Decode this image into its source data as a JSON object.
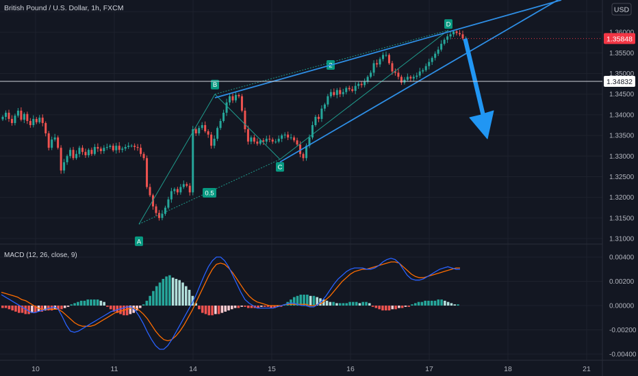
{
  "header": {
    "title": "British Pound / U.S. Dollar, 1h, FXCM",
    "currency_button": "USD"
  },
  "price_axis": {
    "ticks": [
      "1.31000",
      "1.31500",
      "1.32000",
      "1.32500",
      "1.33000",
      "1.33500",
      "1.34000",
      "1.34500",
      "1.35000",
      "1.35500",
      "1.36000",
      "1.36500"
    ],
    "tick_values": [
      1.31,
      1.315,
      1.32,
      1.325,
      1.33,
      1.335,
      1.34,
      1.345,
      1.35,
      1.355,
      1.36,
      1.365
    ],
    "last_price_label": "1.35848",
    "last_price": 1.35848,
    "last_price_color": "#f23645",
    "hline_label": "1.34832",
    "hline_price": 1.34832
  },
  "macd_panel": {
    "legend": "MACD (12, 26, close, 9)",
    "ticks": [
      "0.00400",
      "0.00200",
      "0.00000",
      "-0.00200",
      "-0.00400"
    ],
    "tick_values": [
      0.004,
      0.002,
      0,
      -0.002,
      -0.004
    ]
  },
  "time_axis": {
    "labels": [
      "10",
      "11",
      "14",
      "15",
      "16",
      "17",
      "18",
      "21"
    ]
  },
  "pattern": {
    "point_labels": [
      "A",
      "B",
      "C",
      "D"
    ],
    "ratio_labels": [
      "0.5",
      "2"
    ]
  },
  "colors": {
    "up": "#26a69a",
    "down": "#ef5350",
    "background": "#131722",
    "drawing_blue": "#2e8fe6",
    "macd_line": "#2962ff",
    "signal_line": "#ff6d00",
    "pattern_label_bg": "#089981"
  },
  "chart_data": [
    {
      "type": "candlestick",
      "title": "British Pound / U.S. Dollar, 1h, FXCM",
      "x_labels": [
        "10",
        "11",
        "14",
        "15",
        "16",
        "17",
        "18",
        "21"
      ],
      "ylim": [
        1.308,
        1.368
      ],
      "pattern_points": [
        {
          "label": "A",
          "price": 1.3135
        },
        {
          "label": "B",
          "price": 1.345
        },
        {
          "label": "C",
          "price": 1.3292
        },
        {
          "label": "D",
          "price": 1.3605
        }
      ],
      "closes": [
        1.3395,
        1.3405,
        1.339,
        1.338,
        1.3398,
        1.341,
        1.3388,
        1.3402,
        1.3385,
        1.3375,
        1.339,
        1.3382,
        1.3393,
        1.338,
        1.3355,
        1.332,
        1.334,
        1.3345,
        1.332,
        1.3265,
        1.3285,
        1.33,
        1.3315,
        1.3295,
        1.3305,
        1.332,
        1.331,
        1.3302,
        1.3315,
        1.3305,
        1.3322,
        1.3318,
        1.3312,
        1.332,
        1.3322,
        1.3325,
        1.3314,
        1.3325,
        1.3315,
        1.3318,
        1.3322,
        1.3325,
        1.3325,
        1.3322,
        1.332,
        1.3305,
        1.3295,
        1.3225,
        1.3205,
        1.3178,
        1.3162,
        1.315,
        1.316,
        1.3175,
        1.3195,
        1.3215,
        1.322,
        1.3212,
        1.3225,
        1.3232,
        1.3228,
        1.3212,
        1.3365,
        1.3355,
        1.3368,
        1.3375,
        1.336,
        1.3352,
        1.3325,
        1.3342,
        1.3368,
        1.3385,
        1.3405,
        1.343,
        1.3445,
        1.3435,
        1.3448,
        1.3445,
        1.341,
        1.3365,
        1.3335,
        1.3345,
        1.3335,
        1.333,
        1.3338,
        1.3335,
        1.3342,
        1.334,
        1.3335,
        1.3335,
        1.3342,
        1.335,
        1.3352,
        1.3345,
        1.3345,
        1.3338,
        1.3328,
        1.3305,
        1.3295,
        1.3325,
        1.3345,
        1.3375,
        1.3395,
        1.339,
        1.3415,
        1.3425,
        1.3445,
        1.3455,
        1.3448,
        1.346,
        1.345,
        1.3455,
        1.3465,
        1.3462,
        1.3458,
        1.347,
        1.3475,
        1.3472,
        1.348,
        1.3492,
        1.3502,
        1.3525,
        1.3522,
        1.3535,
        1.3545,
        1.3545,
        1.3525,
        1.3505,
        1.3502,
        1.3492,
        1.3478,
        1.3485,
        1.3492,
        1.3488,
        1.3492,
        1.3495,
        1.3505,
        1.3508,
        1.3518,
        1.3528,
        1.3538,
        1.3548,
        1.3558,
        1.3572,
        1.3582,
        1.359,
        1.3595,
        1.3602,
        1.3598,
        1.3595,
        1.3585,
        1.3585
      ],
      "last_price": 1.35848,
      "horizontal_line": 1.34832
    },
    {
      "type": "bar",
      "title": "MACD (12, 26, close, 9)",
      "ylim": [
        -0.0045,
        0.0048
      ],
      "histogram": [
        -0.0002,
        -0.0002,
        -0.0003,
        -0.0004,
        -0.0005,
        -0.0006,
        -0.0006,
        -0.0007,
        -0.0007,
        -0.0006,
        -0.0006,
        -0.0005,
        -0.0005,
        -0.0004,
        -0.0004,
        -0.0004,
        -0.0003,
        -0.0003,
        -0.0003,
        -0.0002,
        -0.0001,
        0.0001,
        0.0002,
        0.0003,
        0.0004,
        0.0004,
        0.0005,
        0.0005,
        0.0005,
        0.0005,
        0.0004,
        0.0003,
        -0.0001,
        -0.0003,
        -0.0005,
        -0.0006,
        -0.0007,
        -0.0008,
        -0.0008,
        -0.0007,
        -0.0006,
        -0.0004,
        -0.0002,
        0.0001,
        0.0004,
        0.0008,
        0.0012,
        0.0016,
        0.0019,
        0.0022,
        0.0024,
        0.0025,
        0.0023,
        0.0022,
        0.0021,
        0.0019,
        0.0016,
        0.0013,
        0.0008,
        0.0002,
        -0.0003,
        -0.0006,
        -0.0007,
        -0.0008,
        -0.0008,
        -0.0007,
        -0.0007,
        -0.0006,
        -0.0005,
        -0.0004,
        -0.0003,
        -0.0002,
        -0.0002,
        -0.0001,
        -0.0001,
        -0.0002,
        -0.0002,
        -0.0002,
        -0.0002,
        -0.0001,
        -0.0001,
        -0.0001,
        -0.0002,
        -0.0002,
        -0.0001,
        -0.0001,
        0.0001,
        0.0003,
        0.0005,
        0.0007,
        0.0008,
        0.0009,
        0.0009,
        0.0009,
        0.0008,
        0.0008,
        0.0007,
        0.0006,
        0.0005,
        0.0004,
        0.0003,
        0.0003,
        0.0002,
        0.0002,
        0.0002,
        0.0002,
        0.0003,
        0.0003,
        0.0003,
        0.0002,
        0.0003,
        0.0003,
        0.0002,
        -0.0001,
        -0.0002,
        -0.0003,
        -0.0004,
        -0.0004,
        -0.0004,
        -0.0003,
        -0.0003,
        -0.0002,
        -0.0002,
        -0.0001,
        -0.0001,
        0.0001,
        0.0002,
        0.0003,
        0.0003,
        0.0004,
        0.0004,
        0.0004,
        0.0004,
        0.0005,
        0.0005,
        0.0004,
        0.0003,
        0.0002,
        0.0001,
        0.0001
      ],
      "macd_line": [
        0.0009,
        0.0007,
        0.0005,
        0.0003,
        0.0001,
        -0.0001,
        -0.0003,
        -0.0005,
        -0.0006,
        -0.0005,
        -0.0004,
        -0.0003,
        -0.0002,
        -0.0001,
        -0.0003,
        -0.0009,
        -0.0016,
        -0.0021,
        -0.0022,
        -0.0021,
        -0.0019,
        -0.0017,
        -0.0015,
        -0.0013,
        -0.0011,
        -0.0009,
        -0.0007,
        -0.0005,
        -0.0004,
        -0.0003,
        -0.0002,
        -0.0001,
        -0.0001,
        -0.0004,
        -0.0009,
        -0.0015,
        -0.0022,
        -0.0028,
        -0.0033,
        -0.0036,
        -0.0036,
        -0.0033,
        -0.0028,
        -0.0022,
        -0.0016,
        -0.001,
        -0.0004,
        0.0002,
        0.0009,
        0.0017,
        0.0025,
        0.0032,
        0.0037,
        0.004,
        0.004,
        0.0037,
        0.0032,
        0.0025,
        0.0018,
        0.0011,
        0.0005,
        0.0002,
        0.0,
        -0.0002,
        -0.0002,
        -0.0002,
        -0.0002,
        -0.0002,
        -0.0001,
        0.0,
        0.0001,
        0.0002,
        0.0002,
        0.0001,
        0.0,
        0.0,
        -0.0001,
        -0.0001,
        0.0001,
        0.0004,
        0.0008,
        0.0013,
        0.0018,
        0.0022,
        0.0025,
        0.0028,
        0.003,
        0.0031,
        0.0031,
        0.0031,
        0.003,
        0.003,
        0.0031,
        0.0033,
        0.0036,
        0.0038,
        0.0039,
        0.0038,
        0.0035,
        0.003,
        0.0025,
        0.0022,
        0.0021,
        0.0021,
        0.0022,
        0.0024,
        0.0026,
        0.0028,
        0.003,
        0.0031,
        0.0032,
        0.0031,
        0.003,
        0.003
      ],
      "signal_line": [
        0.0011,
        0.001,
        0.0009,
        0.0008,
        0.0007,
        0.0005,
        0.0004,
        0.0002,
        0.0,
        -0.0002,
        -0.0003,
        -0.0003,
        -0.0003,
        -0.0003,
        -0.0003,
        -0.0005,
        -0.0008,
        -0.0011,
        -0.0014,
        -0.0016,
        -0.0017,
        -0.0017,
        -0.0017,
        -0.0016,
        -0.0014,
        -0.0012,
        -0.001,
        -0.0008,
        -0.0006,
        -0.0005,
        -0.0004,
        -0.0003,
        -0.0002,
        -0.0002,
        -0.0004,
        -0.0007,
        -0.0011,
        -0.0016,
        -0.0021,
        -0.0025,
        -0.0028,
        -0.0029,
        -0.0028,
        -0.0025,
        -0.0021,
        -0.0016,
        -0.001,
        -0.0004,
        0.0003,
        0.001,
        0.0017,
        0.0024,
        0.003,
        0.0034,
        0.0035,
        0.0034,
        0.0031,
        0.0027,
        0.0022,
        0.0017,
        0.0012,
        0.0008,
        0.0005,
        0.0003,
        0.0002,
        0.0001,
        0.0,
        0.0,
        0.0,
        0.0,
        0.0001,
        0.0001,
        0.0001,
        0.0001,
        0.0001,
        0.0001,
        0.0,
        0.0,
        0.0001,
        0.0002,
        0.0005,
        0.0008,
        0.0012,
        0.0016,
        0.002,
        0.0023,
        0.0026,
        0.0028,
        0.0029,
        0.003,
        0.003,
        0.0031,
        0.0032,
        0.0033,
        0.0034,
        0.0035,
        0.0036,
        0.0036,
        0.0035,
        0.0032,
        0.0029,
        0.0026,
        0.0024,
        0.0023,
        0.0023,
        0.0024,
        0.0025,
        0.0026,
        0.0027,
        0.0028,
        0.0029,
        0.003,
        0.0031,
        0.0031
      ]
    }
  ]
}
